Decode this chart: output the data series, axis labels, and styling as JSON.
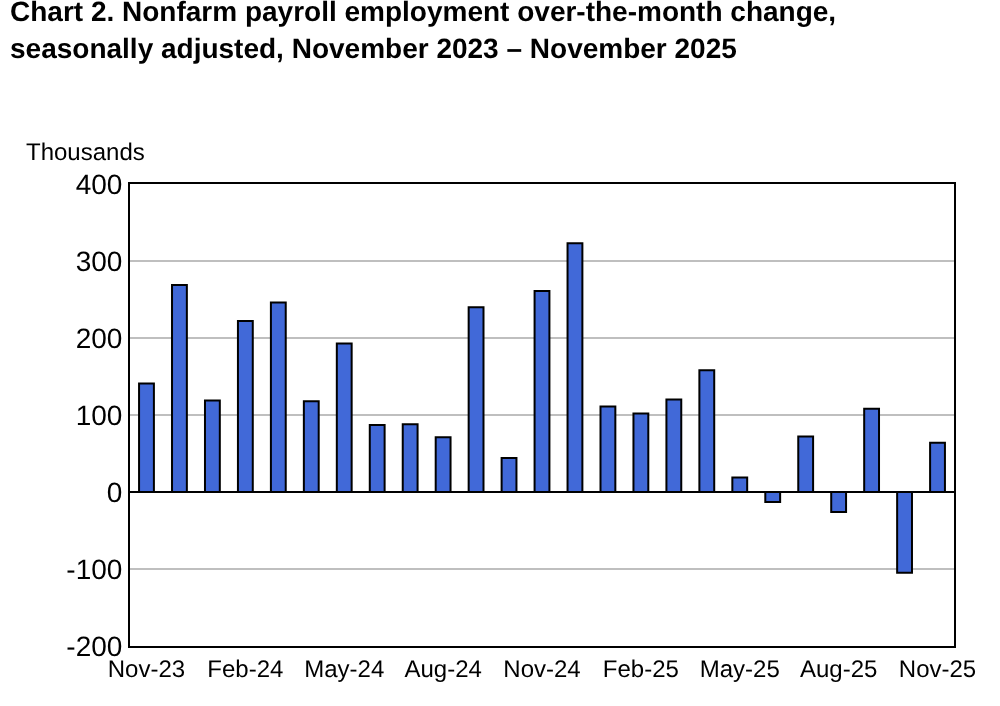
{
  "chart_data": {
    "type": "bar",
    "title": "Chart 2. Nonfarm payroll employment over-the-month change,\nseasonally adjusted, November 2023 – November 2025",
    "ylabel": "Thousands",
    "categories": [
      "Nov-23",
      null,
      null,
      "Feb-24",
      null,
      null,
      "May-24",
      null,
      null,
      "Aug-24",
      null,
      null,
      "Nov-24",
      null,
      null,
      "Feb-25",
      null,
      null,
      "May-25",
      null,
      null,
      "Aug-25",
      null,
      null,
      "Nov-25"
    ],
    "values": [
      141,
      269,
      119,
      222,
      246,
      118,
      193,
      87,
      88,
      71,
      240,
      44,
      261,
      323,
      111,
      102,
      120,
      158,
      19,
      -13,
      72,
      -26,
      108,
      -105,
      64
    ],
    "color": "#4169d8",
    "ylim": [
      -200,
      400
    ],
    "yticks": [
      -200,
      -100,
      0,
      100,
      200,
      300,
      400
    ],
    "grid": "y",
    "legend": false
  }
}
